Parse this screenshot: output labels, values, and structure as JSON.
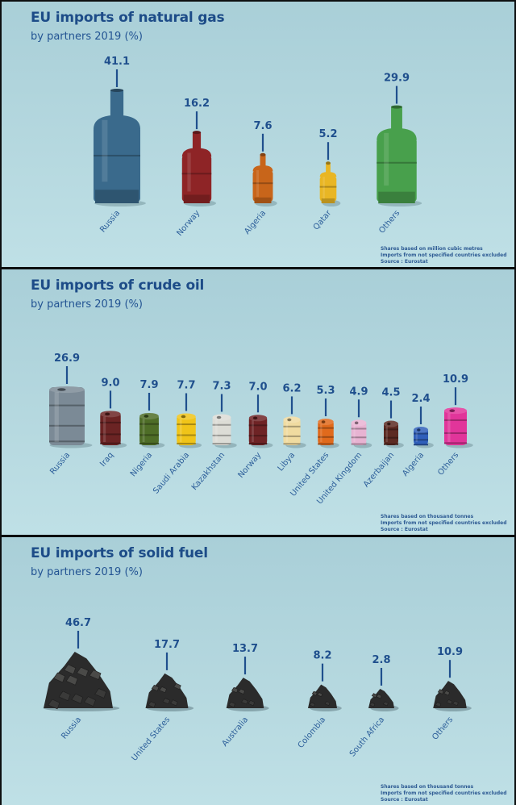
{
  "chart_data": [
    {
      "type": "bar",
      "marker": "gas-cylinder",
      "title": "EU imports of natural gas",
      "subtitle": "by partners 2019 (%)",
      "xlabel": "",
      "ylabel": "",
      "categories": [
        "Russia",
        "Norway",
        "Algeria",
        "Qatar",
        "Others"
      ],
      "values": [
        41.1,
        16.2,
        7.6,
        5.2,
        29.9
      ],
      "value_labels": [
        "41.1",
        "16.2",
        "7.6",
        "5.2",
        "29.9"
      ],
      "colors": [
        "#3a6a8c",
        "#8e2426",
        "#c8651a",
        "#e9b624",
        "#48a04c"
      ],
      "notes": [
        "Shares based on million cubic metres",
        "Imports from not specified countries excluded",
        "Source : Eurostat"
      ]
    },
    {
      "type": "bar",
      "marker": "oil-barrel",
      "title": "EU imports of crude oil",
      "subtitle": "by partners 2019 (%)",
      "xlabel": "",
      "ylabel": "",
      "categories": [
        "Russia",
        "Iraq",
        "Nigeria",
        "Saudi Arabia",
        "Kazakhstan",
        "Norway",
        "Libya",
        "United States",
        "United Kingdom",
        "Azerbaijan",
        "Algeria",
        "Others"
      ],
      "values": [
        26.9,
        9.0,
        7.9,
        7.7,
        7.3,
        7.0,
        6.2,
        5.3,
        4.9,
        4.5,
        2.4,
        10.9
      ],
      "value_labels": [
        "26.9",
        "9.0",
        "7.9",
        "7.7",
        "7.3",
        "7.0",
        "6.2",
        "5.3",
        "4.9",
        "4.5",
        "2.4",
        "10.9"
      ],
      "colors": [
        "#7b8a96",
        "#6b2424",
        "#4e6d27",
        "#f0c419",
        "#dcdcd6",
        "#6e2325",
        "#f0dba0",
        "#e06a1c",
        "#e7b3d2",
        "#5c2a22",
        "#2f5fba",
        "#e1359a"
      ],
      "notes": [
        "Shares based on thousand tonnes",
        "Imports from not specified countries excluded",
        "Source : Eurostat"
      ]
    },
    {
      "type": "bar",
      "marker": "coal-pile",
      "title": "EU imports of solid fuel",
      "subtitle": "by partners 2019 (%)",
      "xlabel": "",
      "ylabel": "",
      "categories": [
        "Russia",
        "United States",
        "Australia",
        "Colombia",
        "South Africa",
        "Others"
      ],
      "values": [
        46.7,
        17.7,
        13.7,
        8.2,
        2.8,
        10.9
      ],
      "value_labels": [
        "46.7",
        "17.7",
        "13.7",
        "8.2",
        "2.8",
        "10.9"
      ],
      "colors": [
        "#2b2b2b",
        "#2b2b2b",
        "#2b2b2b",
        "#2b2b2b",
        "#2b2b2b",
        "#2b2b2b"
      ],
      "notes": [
        "Shares based on thousand tonnes",
        "Imports from not specified countries excluded",
        "Source : Eurostat"
      ]
    }
  ]
}
